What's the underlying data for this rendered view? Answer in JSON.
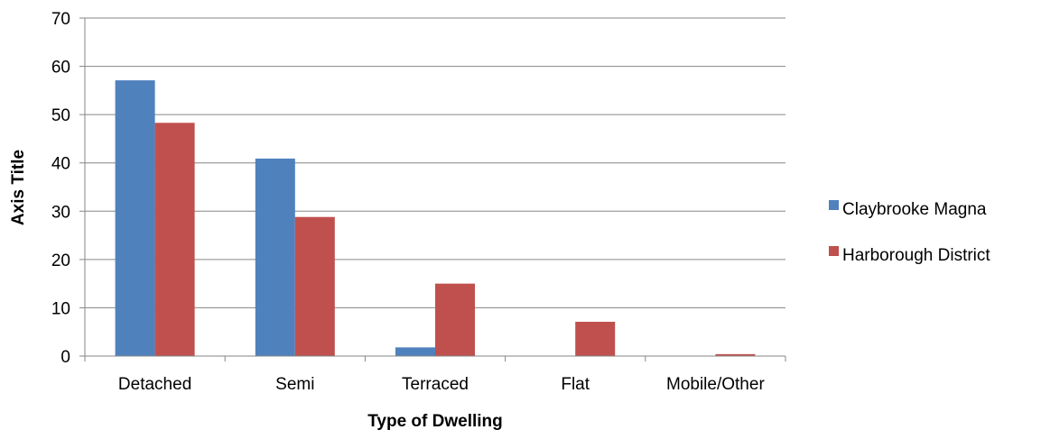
{
  "chart_data": {
    "type": "bar",
    "xlabel": "Type of Dwelling",
    "ylabel": "Axis Title",
    "categories": [
      "Detached",
      "Semi",
      "Terraced",
      "Flat",
      "Mobile/Other"
    ],
    "series": [
      {
        "name": "Claybrooke Magna",
        "color": "#4F81BD",
        "values": [
          57.1,
          40.9,
          1.8,
          0,
          0
        ]
      },
      {
        "name": "Harborough District",
        "color": "#C0504D",
        "values": [
          48.3,
          28.8,
          15.0,
          7.1,
          0.4
        ]
      }
    ],
    "ylim": [
      0,
      70
    ],
    "yticks": [
      0,
      10,
      20,
      30,
      40,
      50,
      60,
      70
    ],
    "grid": true,
    "legend_position": "right"
  }
}
